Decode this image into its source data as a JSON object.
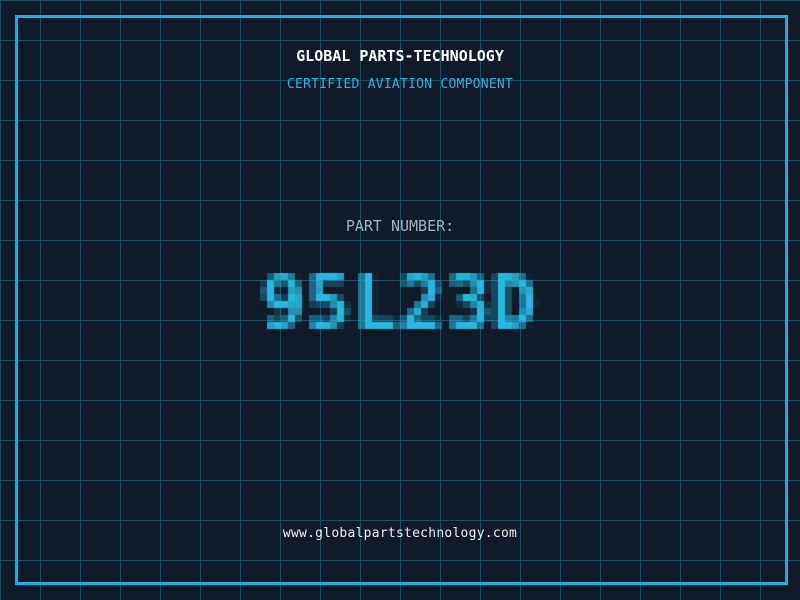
{
  "header": {
    "title": "GLOBAL PARTS-TECHNOLOGY",
    "subtitle": "CERTIFIED AVIATION COMPONENT"
  },
  "part": {
    "label": "PART NUMBER:",
    "number": "95L23D"
  },
  "footer": {
    "url": "www.globalpartstechnology.com"
  },
  "colors": {
    "background": "#101a29",
    "grid_line": "#1c4d62",
    "frame_accent": "#14b1d9",
    "title": "#ffffff",
    "subtitle": "#2bb3da",
    "part_label": "#a2b2c0",
    "part_number": "#2ab8e0",
    "url": "#eef2f5"
  }
}
